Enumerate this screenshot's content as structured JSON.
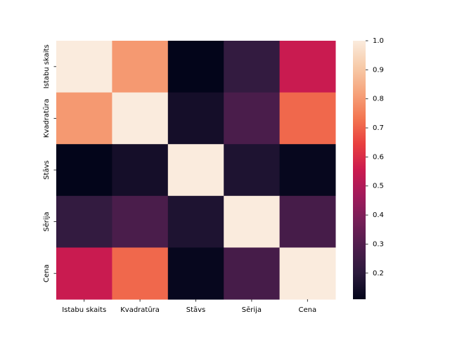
{
  "chart_data": {
    "type": "heatmap",
    "categories": [
      "Istabu skaits",
      "Kvadratūra",
      "Stāvs",
      "Sērija",
      "Cena"
    ],
    "values": [
      [
        1,
        0.8,
        0.11,
        0.22,
        0.55
      ],
      [
        0.8,
        1,
        0.15,
        0.28,
        0.71
      ],
      [
        0.11,
        0.15,
        1,
        0.17,
        0.12
      ],
      [
        0.22,
        0.28,
        0.17,
        1,
        0.27
      ],
      [
        0.55,
        0.71,
        0.12,
        0.27,
        1
      ]
    ],
    "clim": [
      0.11,
      1
    ],
    "cticks": [
      0.2,
      0.3,
      0.4,
      0.5,
      0.6,
      0.7,
      0.8,
      0.9,
      {
        "value": 1,
        "label": "1.0"
      }
    ],
    "colormap": [
      "#03051a",
      "#2b1a3c",
      "#4d1d4c",
      "#741f57",
      "#a11a5b",
      "#cb1b4f",
      "#e83f3f",
      "#f37651",
      "#f6a47c",
      "#f7cba9",
      "#faebdd"
    ]
  }
}
